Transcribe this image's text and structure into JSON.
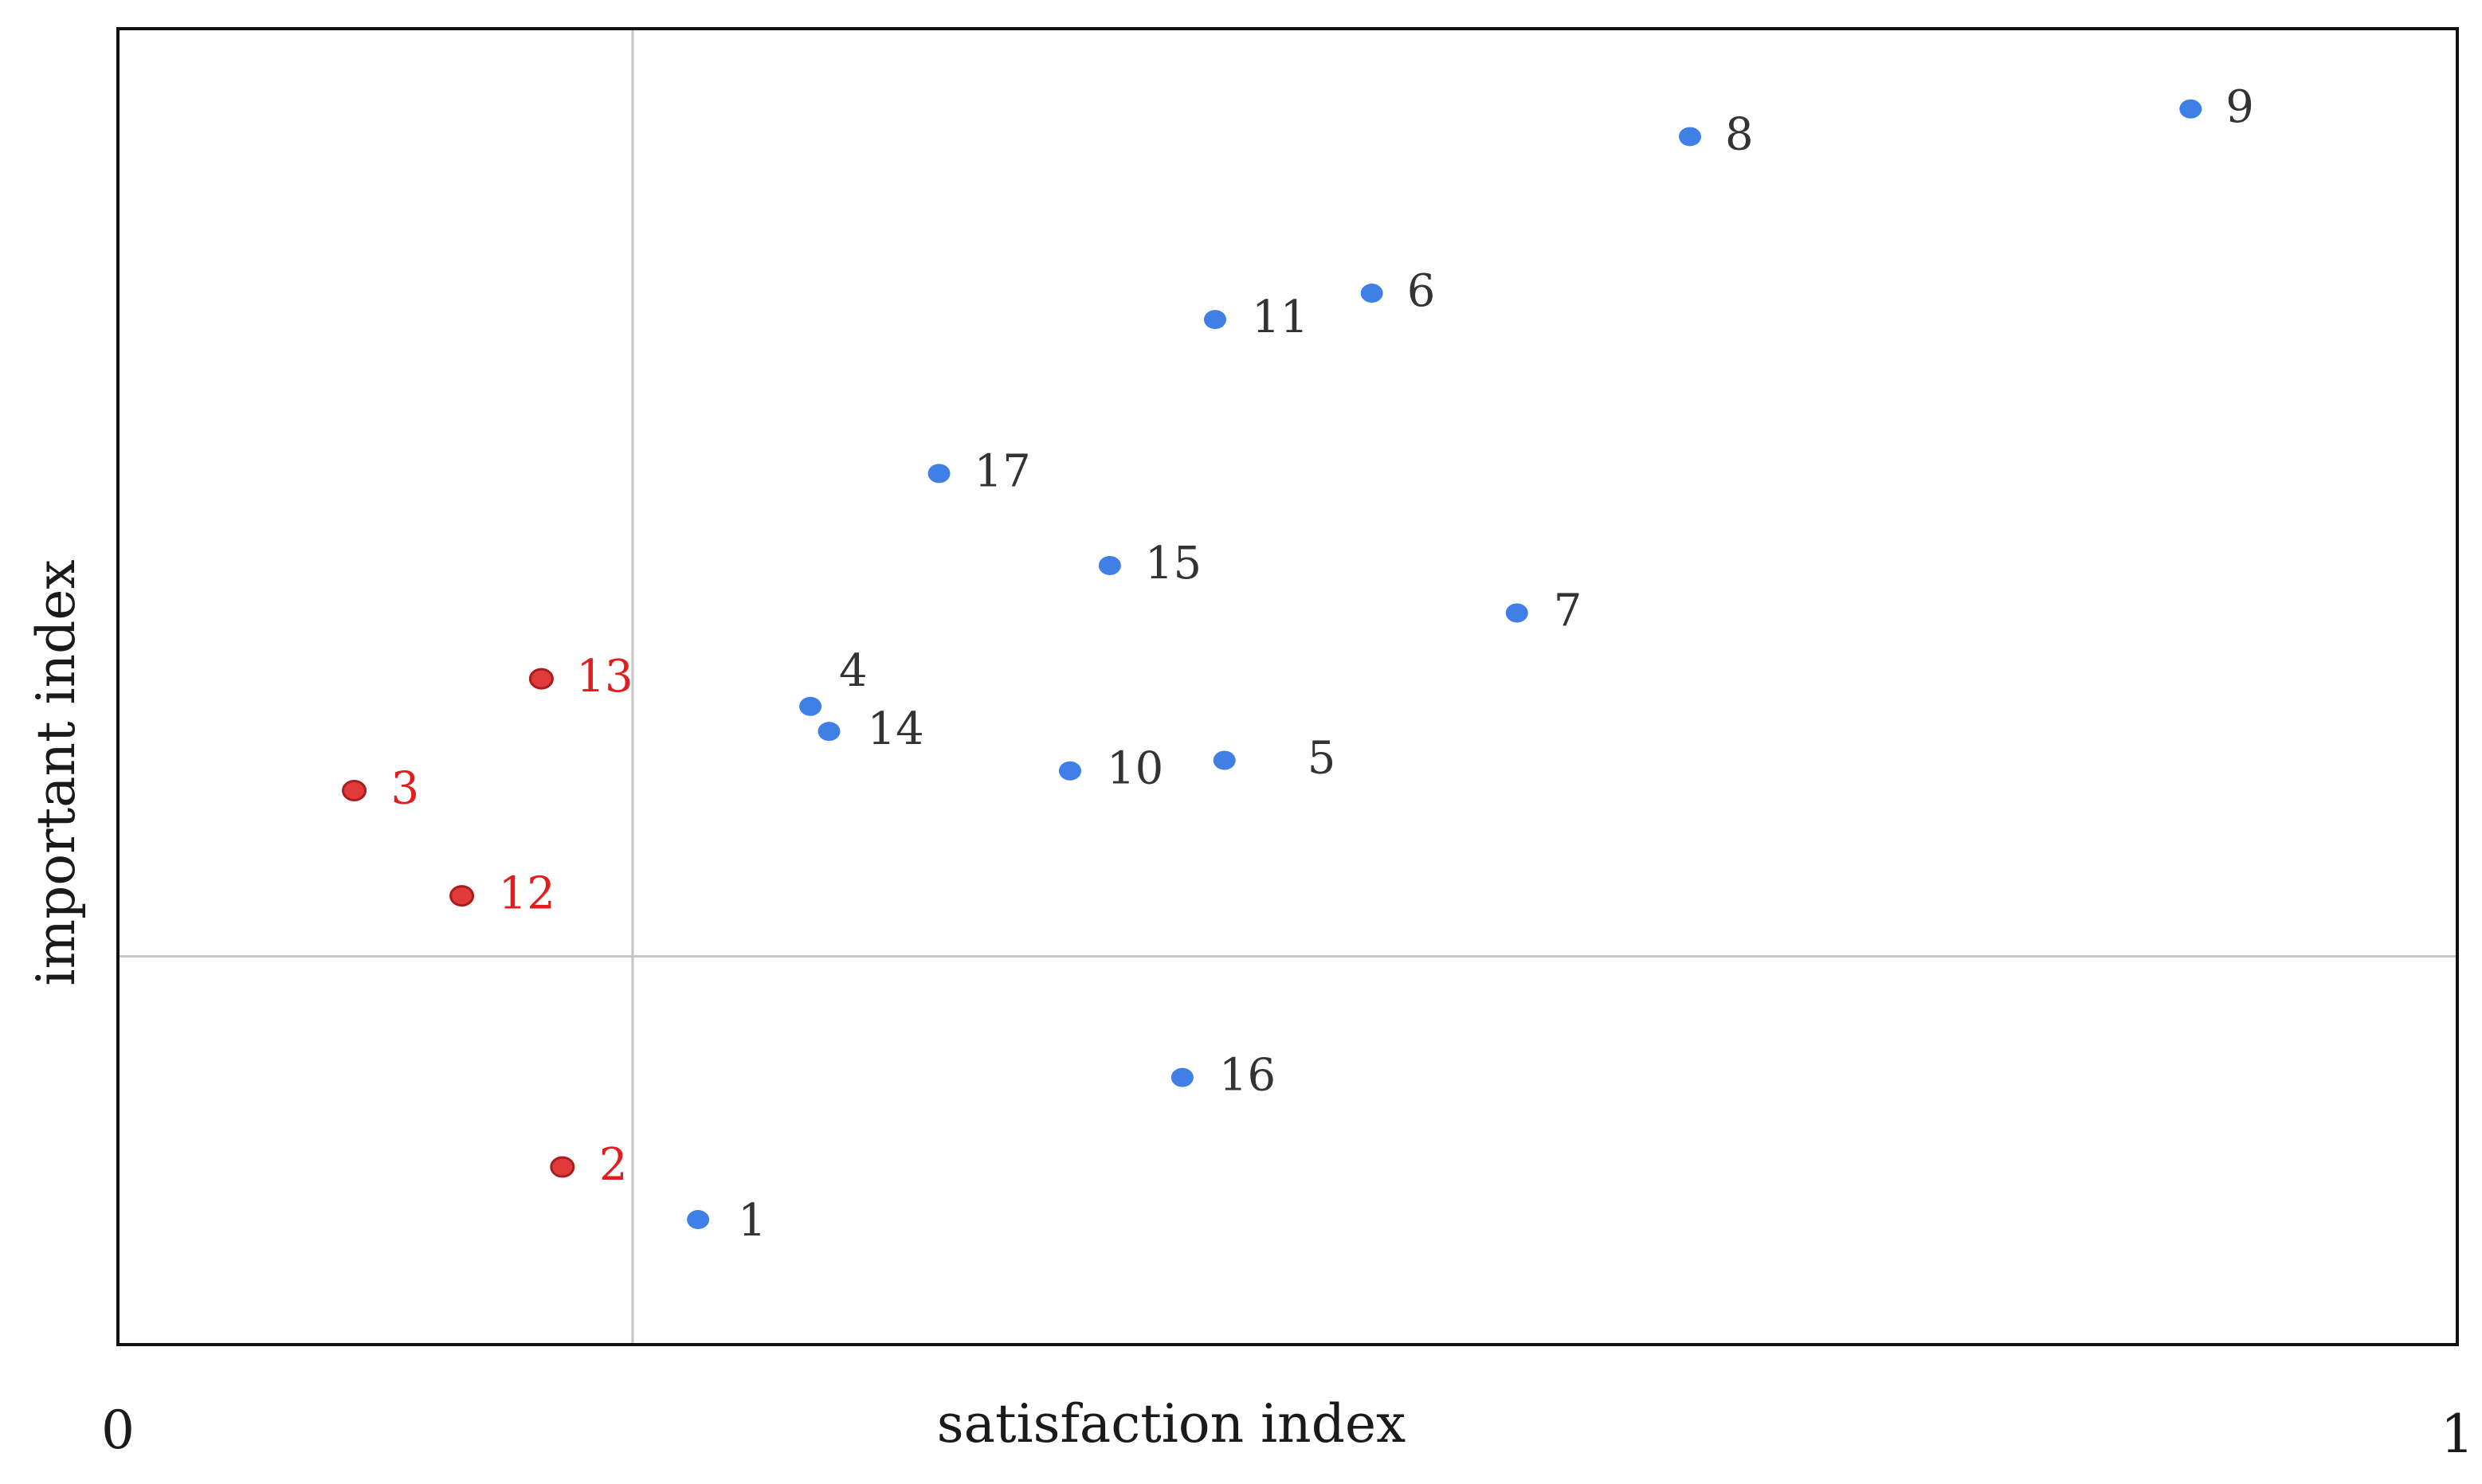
{
  "chart_data": {
    "type": "scatter",
    "title": "",
    "xlabel": "satisfaction index",
    "ylabel": "important index",
    "xlim": [
      0,
      1
    ],
    "ylim": [
      0,
      1
    ],
    "x_tick_labels": [
      "0",
      "1"
    ],
    "divider_lines": {
      "x": 0.22,
      "y": 0.295
    },
    "grid": false,
    "colors": {
      "blue": "#3f7fe6",
      "red": "#e03a3a",
      "red_stroke": "#a81e1e",
      "label_default": "#333333",
      "label_red": "#e01e1e",
      "frame": "#111111",
      "divider": "#c4c4c4"
    },
    "points": [
      {
        "id": "1",
        "label": "1",
        "x": 0.248,
        "y": 0.095,
        "group": "blue"
      },
      {
        "id": "2",
        "label": "2",
        "x": 0.19,
        "y": 0.135,
        "group": "red"
      },
      {
        "id": "3",
        "label": "3",
        "x": 0.101,
        "y": 0.421,
        "group": "red"
      },
      {
        "id": "4",
        "label": "4",
        "x": 0.296,
        "y": 0.485,
        "group": "blue"
      },
      {
        "id": "5",
        "label": "5",
        "x": 0.473,
        "y": 0.444,
        "group": "blue"
      },
      {
        "id": "6",
        "label": "6",
        "x": 0.536,
        "y": 0.799,
        "group": "blue"
      },
      {
        "id": "7",
        "label": "7",
        "x": 0.598,
        "y": 0.556,
        "group": "blue"
      },
      {
        "id": "8",
        "label": "8",
        "x": 0.672,
        "y": 0.918,
        "group": "blue"
      },
      {
        "id": "9",
        "label": "9",
        "x": 0.886,
        "y": 0.939,
        "group": "blue"
      },
      {
        "id": "10",
        "label": "10",
        "x": 0.407,
        "y": 0.436,
        "group": "blue"
      },
      {
        "id": "11",
        "label": "11",
        "x": 0.469,
        "y": 0.779,
        "group": "blue"
      },
      {
        "id": "12",
        "label": "12",
        "x": 0.147,
        "y": 0.341,
        "group": "red"
      },
      {
        "id": "13",
        "label": "13",
        "x": 0.181,
        "y": 0.506,
        "group": "red"
      },
      {
        "id": "14",
        "label": "14",
        "x": 0.304,
        "y": 0.466,
        "group": "blue"
      },
      {
        "id": "15",
        "label": "15",
        "x": 0.424,
        "y": 0.592,
        "group": "blue"
      },
      {
        "id": "16",
        "label": "16",
        "x": 0.455,
        "y": 0.203,
        "group": "blue"
      },
      {
        "id": "17",
        "label": "17",
        "x": 0.351,
        "y": 0.662,
        "group": "blue"
      }
    ]
  }
}
